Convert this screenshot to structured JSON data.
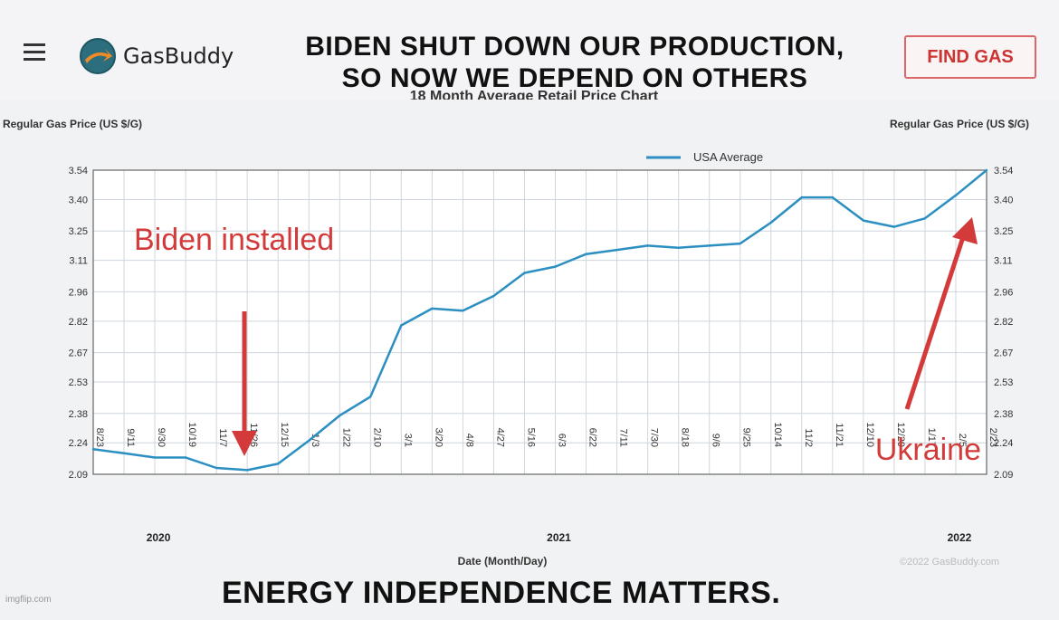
{
  "header": {
    "brand": "GasBuddy",
    "headline_line1": "BIDEN SHUT DOWN OUR PRODUCTION,",
    "headline_line2": "SO NOW WE DEPEND ON OTHERS",
    "find_gas_label": "FIND GAS",
    "accent_color": "#d33b3b"
  },
  "footer_text": "ENERGY INDEPENDENCE MATTERS.",
  "watermark": "imgflip.com",
  "chart_data": {
    "type": "line",
    "title": "18 Month Average Retail Price Chart",
    "ylabel_left": "Regular Gas Price (US $/G)",
    "ylabel_right": "Regular Gas Price (US $/G)",
    "xlabel": "Date (Month/Day)",
    "copyright": "©2022 GasBuddy.com",
    "ylim": [
      2.09,
      3.54
    ],
    "yticks": [
      "3.54",
      "3.40",
      "3.25",
      "3.11",
      "2.96",
      "2.82",
      "2.67",
      "2.53",
      "2.38",
      "2.24",
      "2.09"
    ],
    "xticks": [
      "8/23",
      "9/11",
      "9/30",
      "10/19",
      "11/7",
      "11/26",
      "12/15",
      "1/3",
      "1/22",
      "2/10",
      "3/1",
      "3/20",
      "4/8",
      "4/27",
      "5/16",
      "6/3",
      "6/22",
      "7/11",
      "7/30",
      "8/18",
      "9/6",
      "9/25",
      "10/14",
      "11/2",
      "11/21",
      "12/10",
      "12/29",
      "1/17",
      "2/5",
      "2/23"
    ],
    "years": [
      {
        "label": "2020",
        "at": "9/30"
      },
      {
        "label": "2021",
        "at": "6/3"
      },
      {
        "label": "2022",
        "at": "2/5"
      }
    ],
    "grid": true,
    "legend": {
      "position": "top",
      "entries": [
        "USA Average"
      ]
    },
    "line_color": "#2b8fc2",
    "series": [
      {
        "name": "USA Average",
        "values": [
          2.21,
          2.19,
          2.17,
          2.17,
          2.12,
          2.11,
          2.14,
          2.25,
          2.37,
          2.46,
          2.8,
          2.88,
          2.87,
          2.94,
          3.05,
          3.08,
          3.14,
          3.16,
          3.18,
          3.17,
          3.18,
          3.19,
          3.29,
          3.41,
          3.41,
          3.3,
          3.27,
          3.31,
          3.42,
          3.54
        ]
      }
    ],
    "annotations": [
      {
        "text": "Biden installed",
        "color": "#d33b3b"
      },
      {
        "text": "Ukraine",
        "color": "#d33b3b"
      }
    ]
  }
}
